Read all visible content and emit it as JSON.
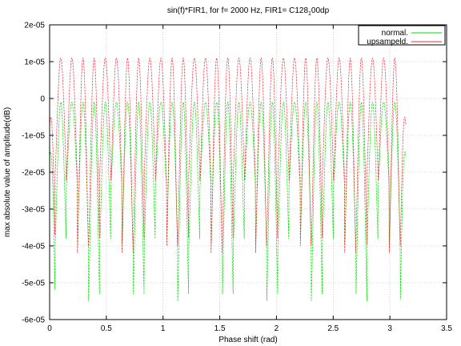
{
  "chart_data": {
    "type": "line",
    "title": "sin(f)*FIR1, for f= 2000 Hz, FIR1= C128_1 00dp",
    "title_parts": {
      "main": "sin(f)*FIR1, for f= 2000 Hz, FIR1= C128",
      "sub": "1",
      "after": "00dp"
    },
    "xlabel": "Phase shift (rad)",
    "ylabel": "max absolute value of amplitude(dB)",
    "xlim": [
      0,
      3.5
    ],
    "ylim": [
      -6e-05,
      2e-05
    ],
    "x_ticks": [
      {
        "value": 0,
        "label": "0"
      },
      {
        "value": 0.5,
        "label": "0.5"
      },
      {
        "value": 1,
        "label": "1"
      },
      {
        "value": 1.5,
        "label": "1.5"
      },
      {
        "value": 2,
        "label": "2"
      },
      {
        "value": 2.5,
        "label": "2.5"
      },
      {
        "value": 3,
        "label": "3"
      },
      {
        "value": 3.5,
        "label": "3.5"
      }
    ],
    "y_ticks": [
      {
        "value": 2e-05,
        "label": "2e-05"
      },
      {
        "value": 1e-05,
        "label": "1e-05"
      },
      {
        "value": 0,
        "label": "0"
      },
      {
        "value": -1e-05,
        "label": "-1e-05"
      },
      {
        "value": -2e-05,
        "label": "-2e-05"
      },
      {
        "value": -3e-05,
        "label": "-3e-05"
      },
      {
        "value": -4e-05,
        "label": "-4e-05"
      },
      {
        "value": -5e-05,
        "label": "-5e-05"
      },
      {
        "value": -6e-05,
        "label": "-6e-05"
      }
    ],
    "grid": true,
    "legend_position": "top-right",
    "x_range": [
      0,
      3.1416
    ],
    "oscillation_cycles": 32,
    "series": [
      {
        "name": "normal.",
        "color": "#00dd00",
        "peak_value": -1e-06,
        "trough_min": -5.5e-05,
        "trough_max": -2.4e-05
      },
      {
        "name": "upsampeld.",
        "color": "#e8303a",
        "peak_value": 1.1e-05,
        "trough_min": -4.5e-05,
        "trough_max": -1.7e-05
      }
    ]
  }
}
